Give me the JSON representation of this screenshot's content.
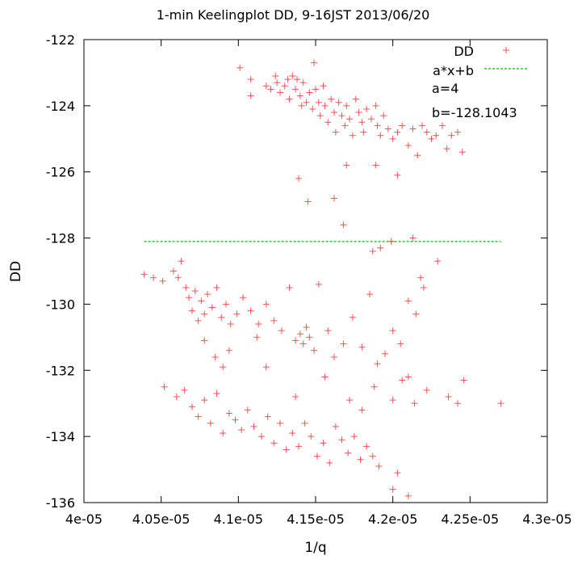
{
  "chart_data": {
    "type": "scatter",
    "title": "1-min Keelingplot DD, 9-16JST 2013/06/20",
    "xlabel": "1/q",
    "ylabel": "DD",
    "xlim": [
      4e-05,
      4.3e-05
    ],
    "ylim": [
      -136,
      -122
    ],
    "x_ticks": [
      "4e-05",
      "4.05e-05",
      "4.1e-05",
      "4.15e-05",
      "4.2e-05",
      "4.25e-05",
      "4.3e-05"
    ],
    "y_ticks": [
      "-122",
      "-124",
      "-126",
      "-128",
      "-130",
      "-132",
      "-134",
      "-136"
    ],
    "grid": false,
    "legend_position": "top-right",
    "annotations": [
      "a=4",
      "b=-128.1043"
    ],
    "series": [
      {
        "name": "DD",
        "style": "plus",
        "color": "#ff5050",
        "points": [
          [
            4.101e-05,
            -122.85
          ],
          [
            4.108e-05,
            -123.2
          ],
          [
            4.108e-05,
            -123.7
          ],
          [
            4.118e-05,
            -123.4
          ],
          [
            4.121e-05,
            -123.5
          ],
          [
            4.124e-05,
            -123.1
          ],
          [
            4.125e-05,
            -123.3
          ],
          [
            4.127e-05,
            -123.6
          ],
          [
            4.13e-05,
            -123.4
          ],
          [
            4.132e-05,
            -123.2
          ],
          [
            4.133e-05,
            -123.8
          ],
          [
            4.135e-05,
            -123.1
          ],
          [
            4.137e-05,
            -123.5
          ],
          [
            4.138e-05,
            -123.2
          ],
          [
            4.14e-05,
            -123.7
          ],
          [
            4.141e-05,
            -124.0
          ],
          [
            4.142e-05,
            -123.3
          ],
          [
            4.144e-05,
            -123.9
          ],
          [
            4.146e-05,
            -123.6
          ],
          [
            4.148e-05,
            -124.1
          ],
          [
            4.149e-05,
            -122.7
          ],
          [
            4.15e-05,
            -123.5
          ],
          [
            4.152e-05,
            -123.9
          ],
          [
            4.153e-05,
            -124.3
          ],
          [
            4.155e-05,
            -123.4
          ],
          [
            4.156e-05,
            -124.0
          ],
          [
            4.158e-05,
            -124.5
          ],
          [
            4.16e-05,
            -123.8
          ],
          [
            4.162e-05,
            -124.2
          ],
          [
            4.163e-05,
            -124.8
          ],
          [
            4.165e-05,
            -123.9
          ],
          [
            4.167e-05,
            -124.3
          ],
          [
            4.169e-05,
            -124.6
          ],
          [
            4.17e-05,
            -124.0
          ],
          [
            4.172e-05,
            -124.4
          ],
          [
            4.174e-05,
            -124.9
          ],
          [
            4.176e-05,
            -123.8
          ],
          [
            4.178e-05,
            -124.2
          ],
          [
            4.18e-05,
            -124.5
          ],
          [
            4.181e-05,
            -124.8
          ],
          [
            4.183e-05,
            -124.1
          ],
          [
            4.186e-05,
            -124.4
          ],
          [
            4.189e-05,
            -124.0
          ],
          [
            4.19e-05,
            -124.6
          ],
          [
            4.192e-05,
            -124.9
          ],
          [
            4.194e-05,
            -124.3
          ],
          [
            4.197e-05,
            -124.7
          ],
          [
            4.2e-05,
            -125.0
          ],
          [
            4.203e-05,
            -124.8
          ],
          [
            4.206e-05,
            -124.6
          ],
          [
            4.21e-05,
            -125.2
          ],
          [
            4.213e-05,
            -124.7
          ],
          [
            4.216e-05,
            -125.5
          ],
          [
            4.219e-05,
            -124.6
          ],
          [
            4.222e-05,
            -124.8
          ],
          [
            4.225e-05,
            -125.0
          ],
          [
            4.228e-05,
            -124.9
          ],
          [
            4.232e-05,
            -124.6
          ],
          [
            4.235e-05,
            -125.3
          ],
          [
            4.238e-05,
            -124.9
          ],
          [
            4.242e-05,
            -124.8
          ],
          [
            4.245e-05,
            -125.4
          ],
          [
            4.139e-05,
            -126.2
          ],
          [
            4.145e-05,
            -126.9
          ],
          [
            4.162e-05,
            -126.8
          ],
          [
            4.17e-05,
            -125.8
          ],
          [
            4.189e-05,
            -125.8
          ],
          [
            4.203e-05,
            -126.1
          ],
          [
            4.168e-05,
            -127.6
          ],
          [
            4.187e-05,
            -128.4
          ],
          [
            4.192e-05,
            -128.3
          ],
          [
            4.199e-05,
            -128.1
          ],
          [
            4.213e-05,
            -128.0
          ],
          [
            4.229e-05,
            -128.7
          ],
          [
            4.039e-05,
            -129.1
          ],
          [
            4.045e-05,
            -129.2
          ],
          [
            4.051e-05,
            -129.3
          ],
          [
            4.058e-05,
            -129.0
          ],
          [
            4.061e-05,
            -129.2
          ],
          [
            4.063e-05,
            -128.7
          ],
          [
            4.066e-05,
            -129.5
          ],
          [
            4.068e-05,
            -129.8
          ],
          [
            4.07e-05,
            -130.2
          ],
          [
            4.072e-05,
            -129.6
          ],
          [
            4.074e-05,
            -130.5
          ],
          [
            4.076e-05,
            -129.9
          ],
          [
            4.078e-05,
            -130.3
          ],
          [
            4.08e-05,
            -129.7
          ],
          [
            4.083e-05,
            -130.1
          ],
          [
            4.086e-05,
            -129.5
          ],
          [
            4.089e-05,
            -130.4
          ],
          [
            4.092e-05,
            -130.0
          ],
          [
            4.095e-05,
            -130.6
          ],
          [
            4.099e-05,
            -130.3
          ],
          [
            4.103e-05,
            -129.8
          ],
          [
            4.108e-05,
            -130.2
          ],
          [
            4.113e-05,
            -130.6
          ],
          [
            4.118e-05,
            -130.0
          ],
          [
            4.123e-05,
            -130.5
          ],
          [
            4.128e-05,
            -130.8
          ],
          [
            4.133e-05,
            -129.5
          ],
          [
            4.137e-05,
            -131.1
          ],
          [
            4.14e-05,
            -130.9
          ],
          [
            4.142e-05,
            -131.2
          ],
          [
            4.144e-05,
            -130.7
          ],
          [
            4.146e-05,
            -131.0
          ],
          [
            4.149e-05,
            -131.4
          ],
          [
            4.152e-05,
            -129.4
          ],
          [
            4.158e-05,
            -130.8
          ],
          [
            4.162e-05,
            -131.6
          ],
          [
            4.168e-05,
            -131.2
          ],
          [
            4.174e-05,
            -130.4
          ],
          [
            4.18e-05,
            -131.3
          ],
          [
            4.185e-05,
            -129.7
          ],
          [
            4.19e-05,
            -131.8
          ],
          [
            4.195e-05,
            -131.5
          ],
          [
            4.2e-05,
            -130.8
          ],
          [
            4.205e-05,
            -131.2
          ],
          [
            4.21e-05,
            -129.9
          ],
          [
            4.215e-05,
            -130.3
          ],
          [
            4.218e-05,
            -129.2
          ],
          [
            4.22e-05,
            -129.5
          ],
          [
            4.078e-05,
            -131.1
          ],
          [
            4.085e-05,
            -131.6
          ],
          [
            4.09e-05,
            -131.9
          ],
          [
            4.094e-05,
            -131.4
          ],
          [
            4.112e-05,
            -131.0
          ],
          [
            4.118e-05,
            -131.9
          ],
          [
            4.052e-05,
            -132.5
          ],
          [
            4.06e-05,
            -132.8
          ],
          [
            4.065e-05,
            -132.6
          ],
          [
            4.07e-05,
            -133.1
          ],
          [
            4.074e-05,
            -133.4
          ],
          [
            4.078e-05,
            -132.9
          ],
          [
            4.082e-05,
            -133.6
          ],
          [
            4.086e-05,
            -132.7
          ],
          [
            4.09e-05,
            -133.9
          ],
          [
            4.094e-05,
            -133.3
          ],
          [
            4.098e-05,
            -133.5
          ],
          [
            4.102e-05,
            -133.8
          ],
          [
            4.106e-05,
            -133.2
          ],
          [
            4.11e-05,
            -133.7
          ],
          [
            4.115e-05,
            -134.0
          ],
          [
            4.119e-05,
            -133.4
          ],
          [
            4.123e-05,
            -134.2
          ],
          [
            4.127e-05,
            -133.6
          ],
          [
            4.131e-05,
            -134.4
          ],
          [
            4.135e-05,
            -133.9
          ],
          [
            4.139e-05,
            -134.3
          ],
          [
            4.143e-05,
            -133.6
          ],
          [
            4.147e-05,
            -134.0
          ],
          [
            4.151e-05,
            -134.6
          ],
          [
            4.155e-05,
            -134.2
          ],
          [
            4.159e-05,
            -134.8
          ],
          [
            4.163e-05,
            -133.7
          ],
          [
            4.167e-05,
            -134.1
          ],
          [
            4.171e-05,
            -134.5
          ],
          [
            4.175e-05,
            -134.0
          ],
          [
            4.179e-05,
            -134.7
          ],
          [
            4.183e-05,
            -134.3
          ],
          [
            4.187e-05,
            -134.6
          ],
          [
            4.191e-05,
            -134.9
          ],
          [
            4.137e-05,
            -132.8
          ],
          [
            4.156e-05,
            -132.2
          ],
          [
            4.172e-05,
            -132.9
          ],
          [
            4.18e-05,
            -133.2
          ],
          [
            4.188e-05,
            -132.5
          ],
          [
            4.2e-05,
            -132.9
          ],
          [
            4.206e-05,
            -132.3
          ],
          [
            4.21e-05,
            -132.2
          ],
          [
            4.214e-05,
            -133.0
          ],
          [
            4.222e-05,
            -132.6
          ],
          [
            4.236e-05,
            -132.8
          ],
          [
            4.242e-05,
            -133.0
          ],
          [
            4.246e-05,
            -132.3
          ],
          [
            4.27e-05,
            -133.0
          ],
          [
            4.2e-05,
            -135.6
          ],
          [
            4.203e-05,
            -135.1
          ],
          [
            4.21e-05,
            -135.8
          ]
        ]
      },
      {
        "name": "a*x+b",
        "style": "dashed-line",
        "color": "#00c000",
        "points": [
          [
            4.039e-05,
            -128.1043
          ],
          [
            4.27e-05,
            -128.1043
          ]
        ]
      }
    ]
  }
}
